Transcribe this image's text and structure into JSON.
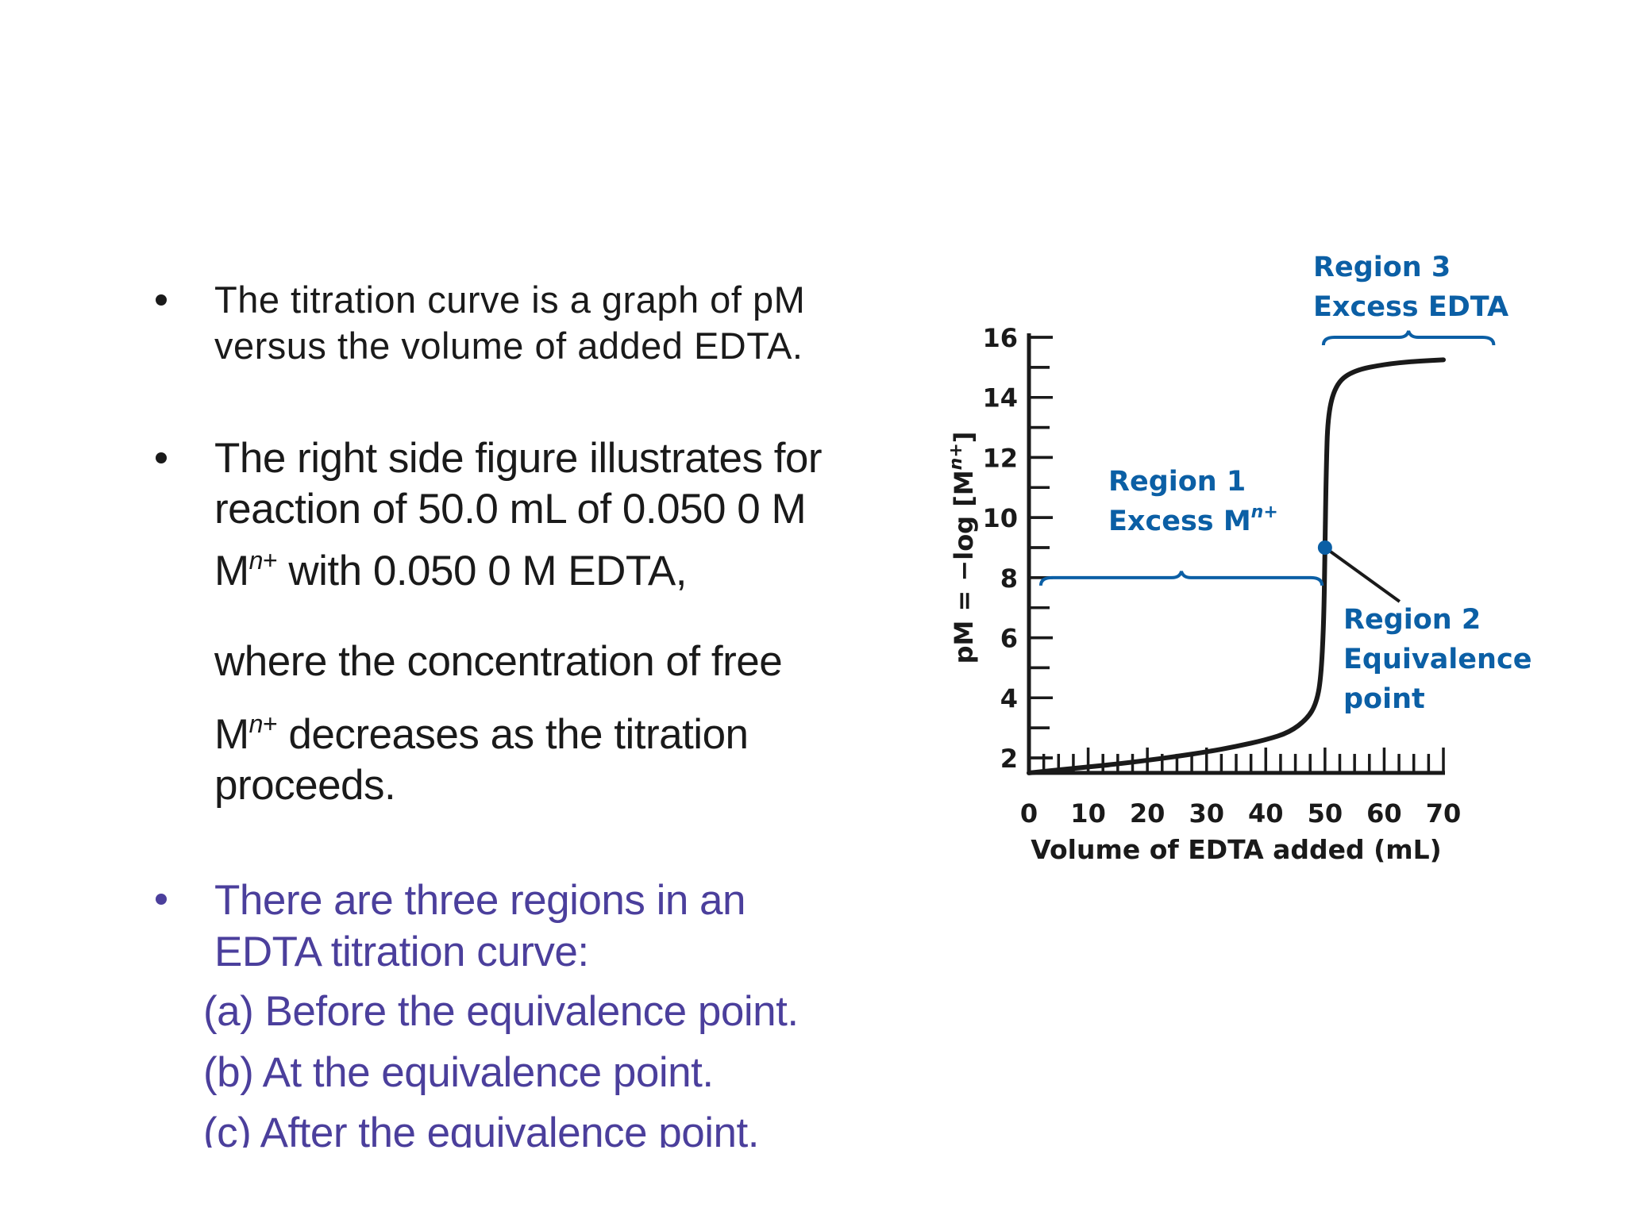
{
  "text": {
    "bullet1": [
      "The titration curve is a graph of pM",
      "versus the volume of added EDTA."
    ],
    "bullet2": {
      "line1": "The right side figure illustrates for",
      "line2": "reaction of 50.0 mL of 0.050 0 M",
      "line3_m": "M",
      "line3_sup_n": "n",
      "line3_sup_plus": "+",
      "line3_rest": " with 0.050 0 M EDTA,",
      "line4": "where the concentration of free",
      "line5_m": "M",
      "line5_sup_n": "n",
      "line5_sup_plus": "+",
      "line5_rest": " decreases as the titration",
      "line6": "proceeds."
    },
    "bullet3": [
      "There are three regions in an",
      "EDTA titration curve:"
    ],
    "items": [
      "(a)  Before the equivalence point.",
      "(b)   At the equivalence point.",
      "(c) After the equivalence point."
    ]
  },
  "colors": {
    "region_blue": "#0b5fa5",
    "bullet3_purple": "#4b3f9c",
    "axis": "#1a1a1a"
  },
  "chart_data": {
    "type": "line",
    "xlabel": "Volume of EDTA added (mL)",
    "ylabel": "pM = −log [M",
    "ylabel_sup": "n+",
    "ylabel_close": "]",
    "xlim": [
      0,
      70
    ],
    "ylim": [
      1.5,
      16
    ],
    "x_ticks": [
      0,
      10,
      20,
      30,
      40,
      50,
      60,
      70
    ],
    "y_ticks": [
      2,
      4,
      6,
      8,
      10,
      12,
      14,
      16
    ],
    "x_minor_step": 2.5,
    "y_minor_step": 1,
    "curve": [
      [
        0,
        1.5
      ],
      [
        5,
        1.6
      ],
      [
        10,
        1.7
      ],
      [
        15,
        1.8
      ],
      [
        20,
        1.92
      ],
      [
        25,
        2.05
      ],
      [
        30,
        2.2
      ],
      [
        35,
        2.38
      ],
      [
        40,
        2.6
      ],
      [
        44,
        2.85
      ],
      [
        47,
        3.3
      ],
      [
        48.5,
        3.8
      ],
      [
        49.3,
        4.6
      ],
      [
        49.8,
        6.5
      ],
      [
        50,
        9.0
      ],
      [
        50.2,
        11.5
      ],
      [
        50.5,
        13.5
      ],
      [
        52,
        14.5
      ],
      [
        55,
        14.9
      ],
      [
        60,
        15.1
      ],
      [
        65,
        15.2
      ],
      [
        70,
        15.25
      ]
    ],
    "equivalence_point": {
      "x": 50,
      "y": 9.0
    },
    "regions": [
      {
        "title": "Region 1",
        "label_main": "Excess M",
        "label_sup": "n+",
        "range_x": [
          2,
          49.5
        ],
        "brace_y": 8.0
      },
      {
        "title": "Region 2",
        "label_lines": [
          "Equivalence",
          "point"
        ]
      },
      {
        "title": "Region 3",
        "label_main": "Excess EDTA",
        "range_x": [
          50,
          78.5
        ],
        "brace_y": 16.0
      }
    ]
  }
}
